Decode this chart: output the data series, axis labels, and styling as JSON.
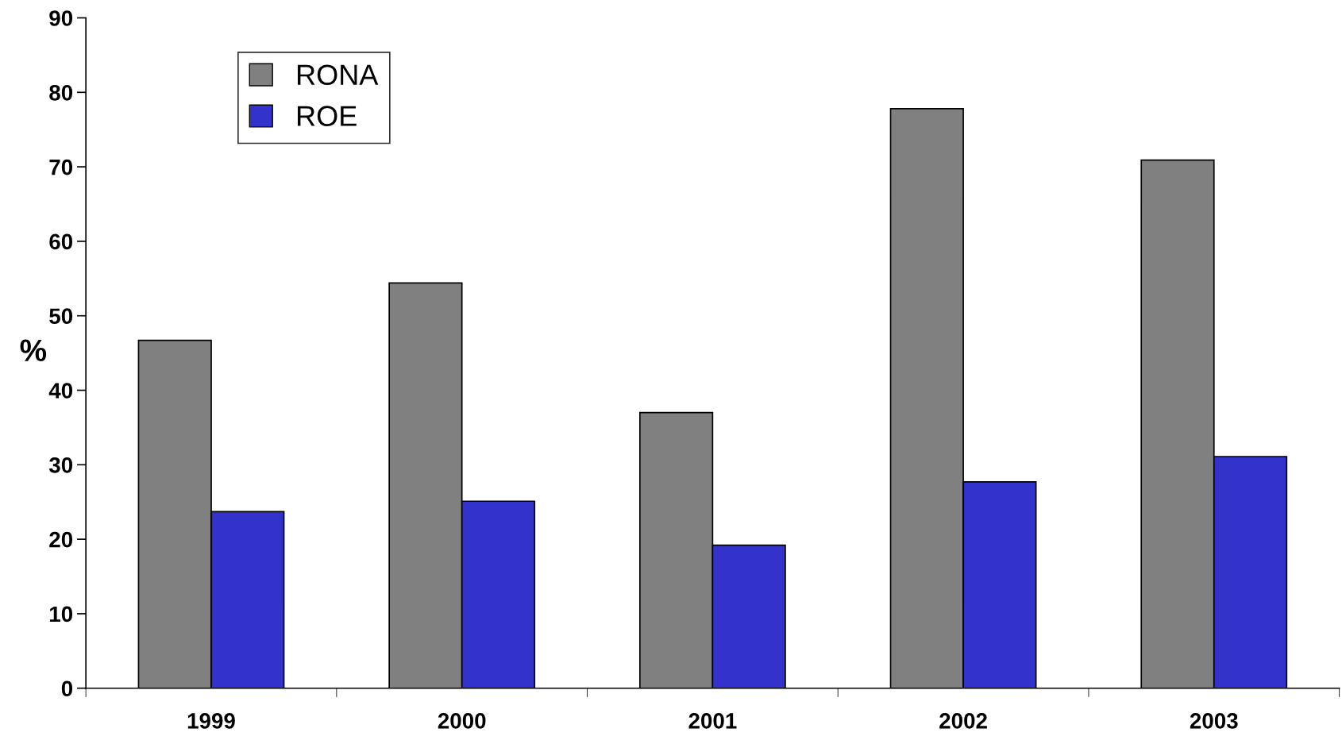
{
  "chart_data": {
    "type": "bar",
    "ylabel": "%",
    "categories": [
      "1999",
      "2000",
      "2001",
      "2002",
      "2003"
    ],
    "series": [
      {
        "name": "RONA",
        "color": "#808080",
        "values": [
          46.7,
          54.4,
          37.0,
          77.8,
          70.9
        ]
      },
      {
        "name": "ROE",
        "color": "#3333cc",
        "values": [
          23.7,
          25.1,
          19.2,
          27.7,
          31.1
        ]
      }
    ],
    "ylim": [
      0,
      90
    ],
    "yticks": [
      0,
      10,
      20,
      30,
      40,
      50,
      60,
      70,
      80,
      90
    ],
    "grid": false,
    "legend": "top left"
  }
}
